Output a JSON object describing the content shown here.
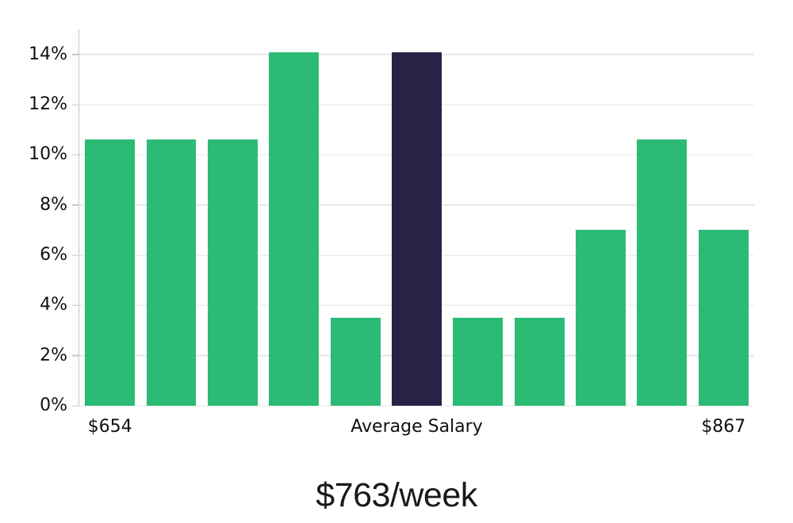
{
  "page": {
    "background": "#ffffff"
  },
  "chart_data": {
    "type": "bar",
    "title": "$763/week",
    "values": [
      10.6,
      10.6,
      10.6,
      14.1,
      3.5,
      14.1,
      3.5,
      3.5,
      7.0,
      10.6,
      7.0
    ],
    "highlight_index": 5,
    "highlight_label": "Average Salary",
    "xtick_labels": [
      {
        "index": 0,
        "label": "$654"
      },
      {
        "index": 5,
        "label": "Average Salary"
      },
      {
        "index": 10,
        "label": "$867"
      }
    ],
    "yticks": [
      0,
      2,
      4,
      6,
      8,
      10,
      12,
      14
    ],
    "ytick_labels": [
      "0%",
      "2%",
      "4%",
      "6%",
      "8%",
      "10%",
      "12%",
      "14%"
    ],
    "ylim": [
      0,
      15
    ],
    "grid": true,
    "legend": false,
    "colors": {
      "bar": "#2cbb74",
      "highlight_bar": "#272347",
      "gridline": "#e5e5e5",
      "axis": "#c6c6c6",
      "tick_text": "#111111",
      "title_text": "#191919"
    }
  }
}
